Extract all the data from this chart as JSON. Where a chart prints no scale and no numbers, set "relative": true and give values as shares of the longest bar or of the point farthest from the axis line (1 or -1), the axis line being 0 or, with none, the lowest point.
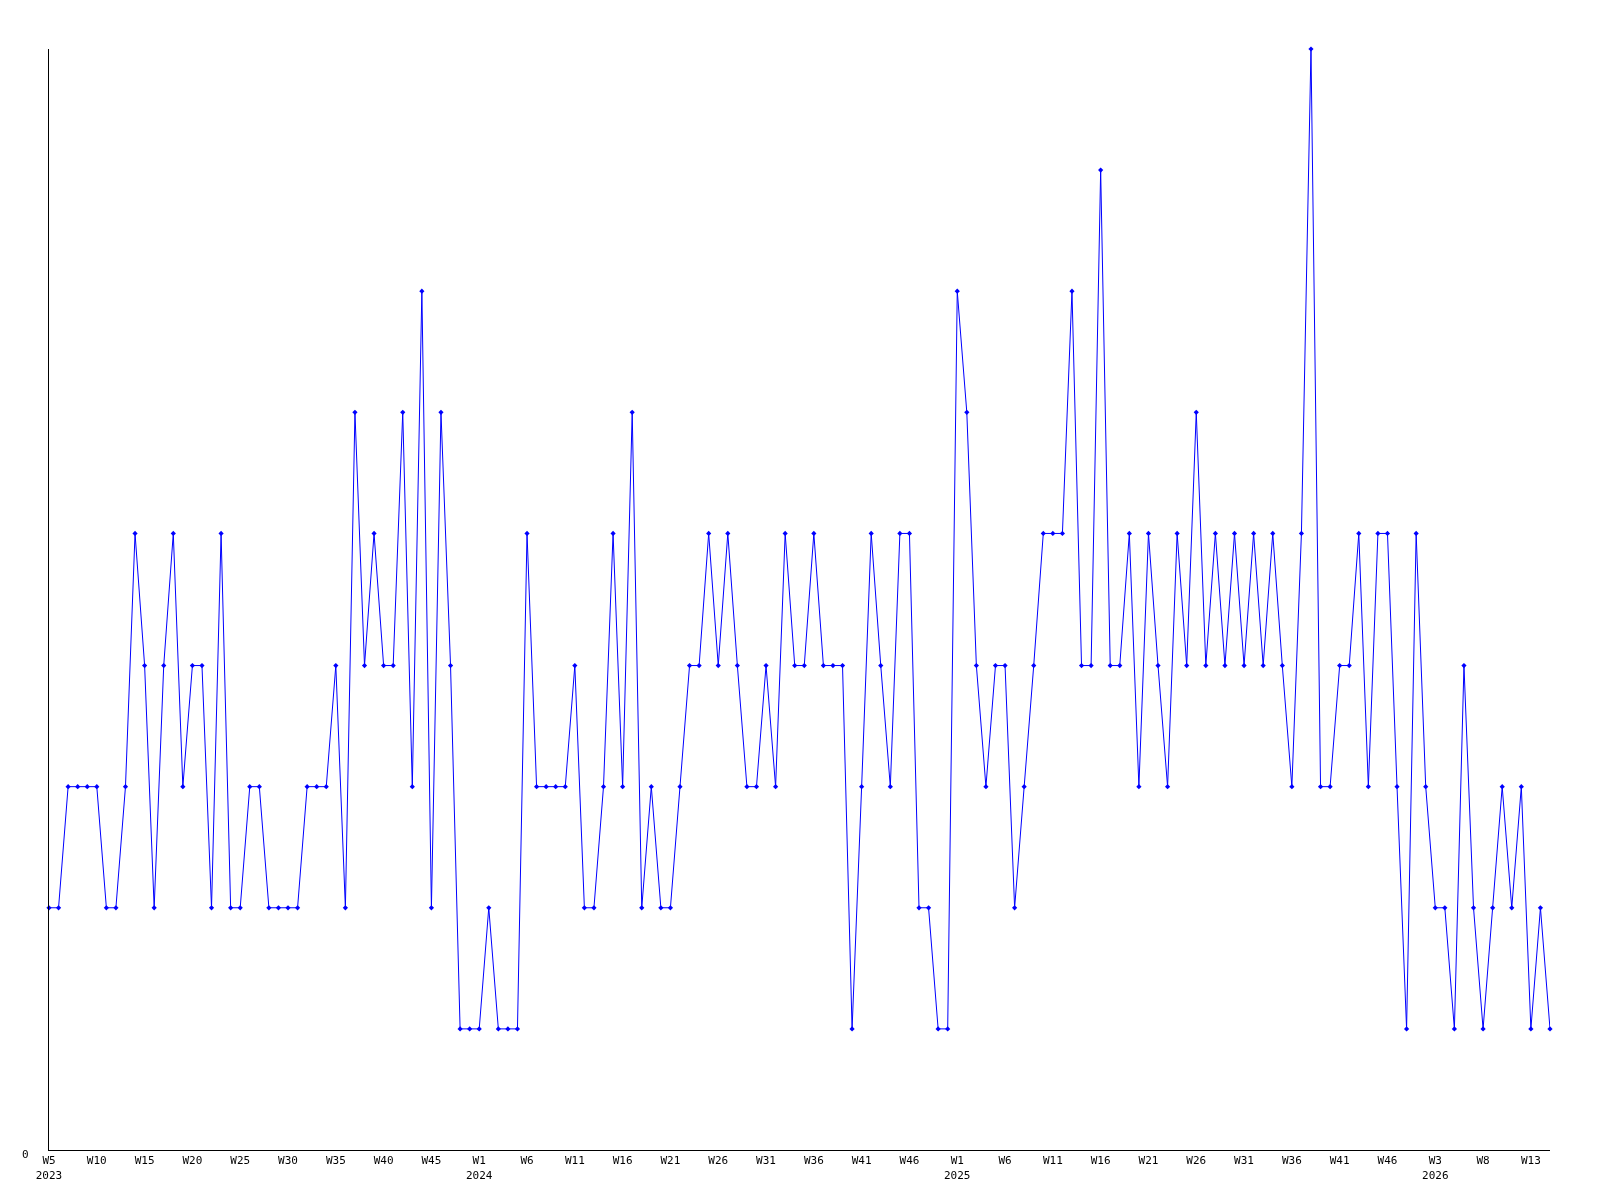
{
  "chart_data": {
    "type": "line",
    "relative": true,
    "annotations": [
      "0"
    ],
    "color": "#0000ff",
    "marker": "diamond",
    "line_style": "solid",
    "categories": [
      "W5\n2023",
      null,
      null,
      null,
      null,
      "W10",
      null,
      null,
      null,
      null,
      "W15",
      null,
      null,
      null,
      null,
      "W20",
      null,
      null,
      null,
      null,
      "W25",
      null,
      null,
      null,
      null,
      "W30",
      null,
      null,
      null,
      null,
      "W35",
      null,
      null,
      null,
      null,
      "W40",
      null,
      null,
      null,
      null,
      "W45",
      null,
      null,
      null,
      null,
      "W1\n2024",
      null,
      null,
      null,
      null,
      "W6",
      null,
      null,
      null,
      null,
      "W11",
      null,
      null,
      null,
      null,
      "W16",
      null,
      null,
      null,
      null,
      "W21",
      null,
      null,
      null,
      null,
      "W26",
      null,
      null,
      null,
      null,
      "W31",
      null,
      null,
      null,
      null,
      "W36",
      null,
      null,
      null,
      null,
      "W41",
      null,
      null,
      null,
      null,
      "W46",
      null,
      null,
      null,
      null,
      "W1\n2025",
      null,
      null,
      null,
      null,
      "W6",
      null,
      null,
      null,
      null,
      "W11",
      null,
      null,
      null,
      null,
      "W16",
      null,
      null,
      null,
      null,
      "W21",
      null,
      null,
      null,
      null,
      "W26",
      null,
      null,
      null,
      null,
      "W31",
      null,
      null,
      null,
      null,
      "W36",
      null,
      null,
      null,
      null,
      "W41",
      null,
      null,
      null,
      null,
      "W46",
      null,
      null,
      null,
      null,
      "W3\n2026",
      null,
      null,
      null,
      null,
      "W8",
      null,
      null,
      null,
      null,
      "W13",
      null,
      null
    ],
    "values": [
      0.22,
      0.22,
      0.33,
      0.33,
      0.33,
      0.33,
      0.22,
      0.22,
      0.33,
      0.56,
      0.44,
      0.22,
      0.44,
      0.56,
      0.33,
      0.44,
      0.44,
      0.22,
      0.56,
      0.22,
      0.22,
      0.33,
      0.33,
      0.22,
      0.22,
      0.22,
      0.22,
      0.33,
      0.33,
      0.33,
      0.44,
      0.22,
      0.67,
      0.44,
      0.56,
      0.44,
      0.44,
      0.67,
      0.33,
      0.78,
      0.22,
      0.67,
      0.44,
      0.11,
      0.11,
      0.11,
      0.22,
      0.11,
      0.11,
      0.11,
      0.56,
      0.33,
      0.33,
      0.33,
      0.33,
      0.44,
      0.22,
      0.22,
      0.33,
      0.56,
      0.33,
      0.67,
      0.22,
      0.33,
      0.22,
      0.22,
      0.33,
      0.44,
      0.44,
      0.56,
      0.44,
      0.56,
      0.44,
      0.33,
      0.33,
      0.44,
      0.33,
      0.56,
      0.44,
      0.44,
      0.56,
      0.44,
      0.44,
      0.44,
      0.11,
      0.33,
      0.56,
      0.44,
      0.33,
      0.56,
      0.56,
      0.22,
      0.22,
      0.11,
      0.11,
      0.78,
      0.67,
      0.44,
      0.33,
      0.44,
      0.44,
      0.22,
      0.33,
      0.44,
      0.56,
      0.56,
      0.56,
      0.78,
      0.44,
      0.44,
      0.89,
      0.44,
      0.44,
      0.56,
      0.33,
      0.56,
      0.44,
      0.33,
      0.56,
      0.44,
      0.67,
      0.44,
      0.56,
      0.44,
      0.56,
      0.44,
      0.56,
      0.44,
      0.56,
      0.44,
      0.33,
      0.56,
      1,
      0.33,
      0.33,
      0.44,
      0.44,
      0.56,
      0.33,
      0.56,
      0.56,
      0.33,
      0.11,
      0.56,
      0.33,
      0.22,
      0.22,
      0.11,
      0.44,
      0.22,
      0.11,
      0.22,
      0.33,
      0.22,
      0.33,
      0.11,
      0.22,
      0.11
    ]
  }
}
